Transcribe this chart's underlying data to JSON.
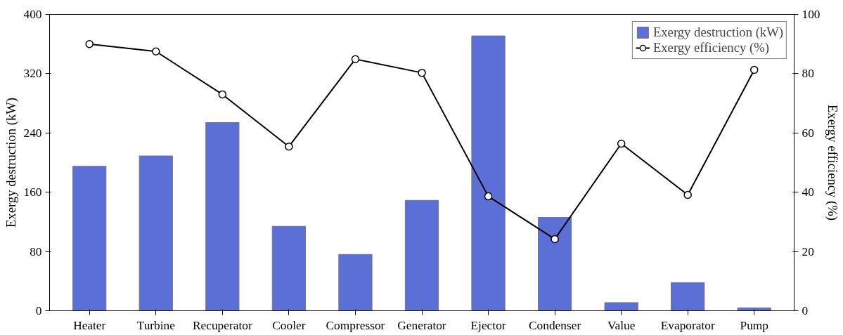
{
  "chart_data": {
    "type": "bar",
    "xlabel": null,
    "ylabel": "Exergy destruction (kW)",
    "y2label": "Exergy efficiency (%)",
    "categories": [
      "Heater",
      "Turbine",
      "Recuperator",
      "Cooler",
      "Compressor",
      "Generator",
      "Ejector",
      "Condenser",
      "Value",
      "Evaporator",
      "Pump"
    ],
    "series": [
      {
        "name": "Exergy destruction (kW)",
        "color": "#5b6fd6",
        "values": [
          195,
          209,
          254,
          114,
          76,
          149,
          371,
          126,
          11,
          38,
          4
        ]
      },
      {
        "name": "Exergy efficiency (%)",
        "type": "line",
        "axis": "y2",
        "color": "#000000",
        "marker": "circle",
        "values": [
          90,
          87.5,
          73,
          55.4,
          84.9,
          80.3,
          38.6,
          24.2,
          56.4,
          39.1,
          81.3
        ]
      }
    ],
    "ylim": [
      0,
      400
    ],
    "yticks": [
      0,
      80,
      160,
      240,
      320,
      400
    ],
    "y2lim": [
      0,
      100
    ],
    "y2ticks": [
      0,
      20,
      40,
      60,
      80,
      100
    ],
    "legend": "top right",
    "grid": false
  }
}
